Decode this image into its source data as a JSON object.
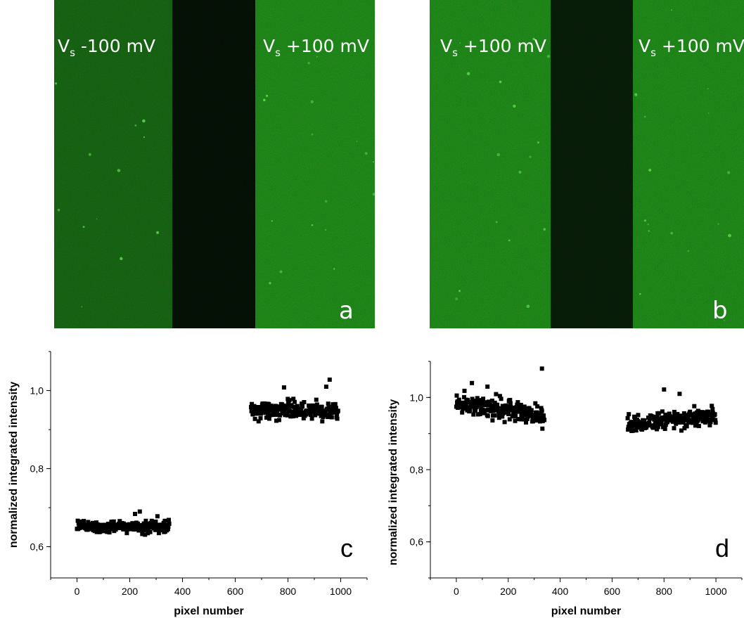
{
  "micrographs": [
    {
      "id": "a",
      "left_label": {
        "symbol": "V",
        "sub": "s",
        "rest": " -100 mV"
      },
      "right_label": {
        "symbol": "V",
        "sub": "s",
        "rest": " +100 mV"
      },
      "letter": "a",
      "colors": {
        "left_region": "#1f5a1a",
        "gap": "#050a05",
        "right_region": "#2a8a22"
      }
    },
    {
      "id": "b",
      "left_label": {
        "symbol": "V",
        "sub": "s",
        "rest": " +100 mV"
      },
      "right_label": {
        "symbol": "V",
        "sub": "s",
        "rest": " +100 mV"
      },
      "letter": "b",
      "colors": {
        "left_region": "#2a8a22",
        "gap": "#0a160a",
        "right_region": "#2a8a22"
      }
    }
  ],
  "chart_data": [
    {
      "type": "scatter",
      "panel": "c",
      "xlabel": "pixel number",
      "ylabel": "normalized integrated intensity",
      "xlim": [
        -100,
        1100
      ],
      "ylim": [
        0.52,
        1.1
      ],
      "xticks": [
        0,
        200,
        400,
        600,
        800,
        1000
      ],
      "xtick_labels": [
        "0",
        "200",
        "400",
        "600",
        "800",
        "1000"
      ],
      "yticks": [
        0.6,
        0.8,
        1.0
      ],
      "ytick_labels": [
        "0,6",
        "0,8",
        "1,0"
      ],
      "series": [
        {
          "x_range": [
            0,
            350
          ],
          "mean": 0.65,
          "spread": 0.012,
          "outliers": [
            [
              238,
              0.69
            ],
            [
              220,
              0.684
            ],
            [
              305,
              0.678
            ]
          ]
        },
        {
          "x_range": [
            660,
            990
          ],
          "mean": 0.95,
          "spread": 0.018,
          "outliers": [
            [
              958,
              1.028
            ],
            [
              785,
              1.008
            ],
            [
              945,
              1.01
            ]
          ]
        }
      ],
      "letter": "c"
    },
    {
      "type": "scatter",
      "panel": "d",
      "xlabel": "pixel number",
      "ylabel": "normalized integrated intensity",
      "xlim": [
        -100,
        1100
      ],
      "ylim": [
        0.5,
        1.1
      ],
      "xticks": [
        0,
        200,
        400,
        600,
        800,
        1000
      ],
      "xtick_labels": [
        "0",
        "200",
        "400",
        "600",
        "800",
        "1000"
      ],
      "yticks": [
        0.6,
        0.8,
        1.0
      ],
      "ytick_labels": [
        "0,6",
        "0,8",
        "1,0"
      ],
      "series": [
        {
          "x_range": [
            0,
            340
          ],
          "mean_start": 0.985,
          "mean_end": 0.95,
          "spread": 0.025,
          "outliers": [
            [
              330,
              1.08
            ],
            [
              60,
              1.04
            ],
            [
              120,
              1.03
            ]
          ]
        },
        {
          "x_range": [
            660,
            1000
          ],
          "mean_start": 0.925,
          "mean_end": 0.95,
          "spread": 0.02,
          "outliers": [
            [
              800,
              1.022
            ],
            [
              860,
              1.01
            ]
          ]
        }
      ],
      "letter": "d"
    }
  ]
}
